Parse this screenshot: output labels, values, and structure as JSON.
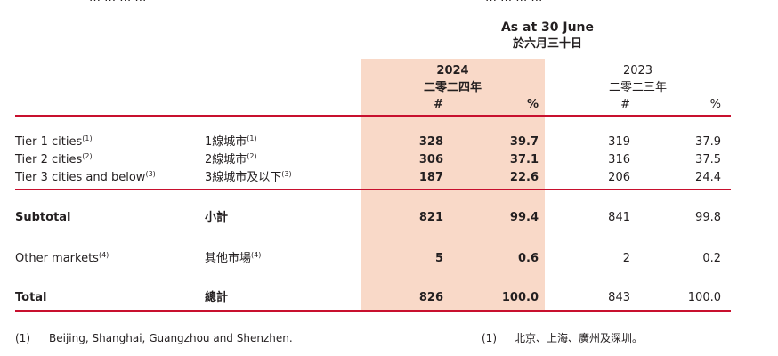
{
  "header_cut_left": "… … … …",
  "header_cut_right": "… … … …",
  "header": {
    "as_at_en": "As at 30 June",
    "as_at_zh": "於六月三十日",
    "year_2024": "2024",
    "year_2024_zh": "二零二四年",
    "year_2023": "2023",
    "year_2023_zh": "二零二三年",
    "col_num": "#",
    "col_pct": "%"
  },
  "rows": [
    {
      "en": "Tier 1 cities",
      "en_sup": "(1)",
      "zh": "1線城市",
      "zh_sup": "(1)",
      "v2024_num": "328",
      "v2024_pct": "39.7",
      "v2023_num": "319",
      "v2023_pct": "37.9"
    },
    {
      "en": "Tier 2 cities",
      "en_sup": "(2)",
      "zh": "2線城市",
      "zh_sup": "(2)",
      "v2024_num": "306",
      "v2024_pct": "37.1",
      "v2023_num": "316",
      "v2023_pct": "37.5"
    },
    {
      "en": "Tier 3 cities and below",
      "en_sup": "(3)",
      "zh": "3線城市及以下",
      "zh_sup": "(3)",
      "v2024_num": "187",
      "v2024_pct": "22.6",
      "v2023_num": "206",
      "v2023_pct": "24.4"
    },
    {
      "en": "Subtotal",
      "en_sup": "",
      "zh": "小計",
      "zh_sup": "",
      "v2024_num": "821",
      "v2024_pct": "99.4",
      "v2023_num": "841",
      "v2023_pct": "99.8"
    },
    {
      "en": "Other markets",
      "en_sup": "(4)",
      "zh": "其他市場",
      "zh_sup": "(4)",
      "v2024_num": "5",
      "v2024_pct": "0.6",
      "v2023_num": "2",
      "v2023_pct": "0.2"
    },
    {
      "en": "Total",
      "en_sup": "",
      "zh": "總計",
      "zh_sup": "",
      "v2024_num": "826",
      "v2024_pct": "100.0",
      "v2023_num": "843",
      "v2023_pct": "100.0"
    }
  ],
  "footnotes": {
    "en_marker": "(1)",
    "en_text": "Beijing, Shanghai, Guangzhou and Shenzhen.",
    "zh_marker": "(1)",
    "zh_text": "北京、上海、廣州及深圳。"
  },
  "colors": {
    "accent_rule": "#c8102e",
    "highlight_fill": "#f9d9c8",
    "text": "#231f20"
  }
}
